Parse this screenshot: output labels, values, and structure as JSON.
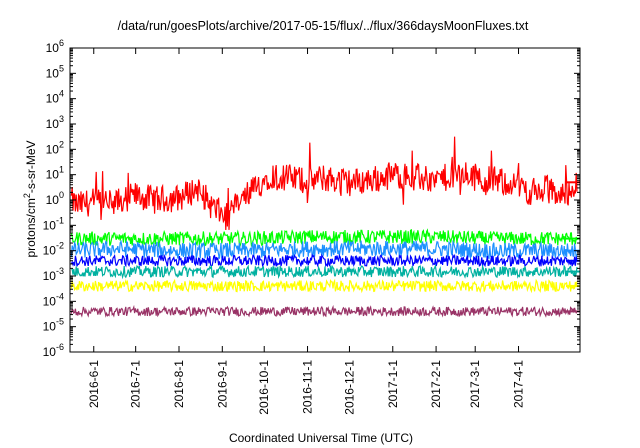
{
  "chart_data": {
    "type": "line",
    "title": "/data/run/goesPlots/archive/2017-05-15/flux/../flux/366daysMoonFluxes.txt",
    "xlabel": "Coordinated Universal Time (UTC)",
    "ylabel_parts": [
      "protons/cm",
      "2",
      "-s-sr-MeV"
    ],
    "y_scale": "log",
    "ylim": [
      1e-06,
      1000000.0
    ],
    "y_ticks": [
      {
        "base": "10",
        "exp": "-6",
        "value": 1e-06
      },
      {
        "base": "10",
        "exp": "-5",
        "value": 1e-05
      },
      {
        "base": "10",
        "exp": "-4",
        "value": 0.0001
      },
      {
        "base": "10",
        "exp": "-3",
        "value": 0.001
      },
      {
        "base": "10",
        "exp": "-2",
        "value": 0.01
      },
      {
        "base": "10",
        "exp": "-1",
        "value": 0.1
      },
      {
        "base": "10",
        "exp": "0",
        "value": 1
      },
      {
        "base": "10",
        "exp": "1",
        "value": 10.0
      },
      {
        "base": "10",
        "exp": "2",
        "value": 100.0
      },
      {
        "base": "10",
        "exp": "3",
        "value": 1000.0
      },
      {
        "base": "10",
        "exp": "4",
        "value": 10000.0
      },
      {
        "base": "10",
        "exp": "5",
        "value": 100000.0
      },
      {
        "base": "10",
        "exp": "6",
        "value": 1000000.0
      }
    ],
    "xlim": [
      "2016-05-15",
      "2017-05-15"
    ],
    "x_ticks": [
      "2016-6-1",
      "2016-7-1",
      "2016-8-1",
      "2016-9-1",
      "2016-10-1",
      "2016-11-1",
      "2016-12-1",
      "2017-1-1",
      "2017-2-1",
      "2017-3-1",
      "2017-4-1"
    ],
    "x_tick_dates": [
      "2016-06-01",
      "2016-07-01",
      "2016-08-01",
      "2016-09-01",
      "2016-10-01",
      "2016-11-01",
      "2016-12-01",
      "2017-01-01",
      "2017-02-01",
      "2017-03-01",
      "2017-04-01"
    ],
    "grid": false,
    "legend": "none",
    "series": [
      {
        "color": "#ff0000",
        "x": [
          "2016-05-16",
          "2016-05-20",
          "2016-06-01",
          "2016-06-15",
          "2016-07-01",
          "2016-07-15",
          "2016-08-01",
          "2016-08-15",
          "2016-08-25",
          "2016-09-05",
          "2016-09-15",
          "2016-09-25",
          "2016-10-05",
          "2016-10-15",
          "2016-11-01",
          "2016-11-15",
          "2016-12-01",
          "2016-12-15",
          "2017-01-01",
          "2017-01-15",
          "2017-02-01",
          "2017-02-15",
          "2017-03-01",
          "2017-03-15",
          "2017-04-01",
          "2017-04-10",
          "2017-04-20",
          "2017-05-01",
          "2017-05-13"
        ],
        "values": [
          1.0,
          0.6,
          0.9,
          0.7,
          1.5,
          1.0,
          1.2,
          3.0,
          0.5,
          0.2,
          1.0,
          3.0,
          10,
          8,
          6,
          7,
          5,
          6,
          10,
          8,
          6,
          10,
          8,
          6,
          4,
          2,
          3,
          1.5,
          5
        ]
      },
      {
        "color": "#00ff00",
        "x": [
          "2016-05-16",
          "2016-06-15",
          "2016-08-01",
          "2016-09-15",
          "2016-11-01",
          "2016-12-15",
          "2017-02-01",
          "2017-03-15",
          "2017-05-13"
        ],
        "values": [
          0.03,
          0.03,
          0.03,
          0.03,
          0.035,
          0.035,
          0.035,
          0.03,
          0.03
        ]
      },
      {
        "color": "#1e90ff",
        "x": [
          "2016-05-16",
          "2016-06-15",
          "2016-08-01",
          "2016-09-15",
          "2016-11-01",
          "2016-12-15",
          "2017-02-01",
          "2017-03-15",
          "2017-05-13"
        ],
        "values": [
          0.01,
          0.012,
          0.01,
          0.01,
          0.012,
          0.012,
          0.012,
          0.01,
          0.01
        ]
      },
      {
        "color": "#0000ff",
        "x": [
          "2016-05-16",
          "2016-06-15",
          "2016-08-01",
          "2016-09-15",
          "2016-11-01",
          "2016-12-15",
          "2017-02-01",
          "2017-03-15",
          "2017-05-13"
        ],
        "values": [
          0.004,
          0.004,
          0.004,
          0.004,
          0.004,
          0.004,
          0.004,
          0.004,
          0.004
        ]
      },
      {
        "color": "#00b0a0",
        "x": [
          "2016-05-16",
          "2016-06-15",
          "2016-08-01",
          "2016-09-15",
          "2016-11-01",
          "2016-12-15",
          "2017-02-01",
          "2017-03-15",
          "2017-05-13"
        ],
        "values": [
          0.0015,
          0.0015,
          0.0015,
          0.0015,
          0.0015,
          0.0015,
          0.0015,
          0.0015,
          0.0015
        ]
      },
      {
        "color": "#ffff00",
        "x": [
          "2016-05-16",
          "2016-06-15",
          "2016-08-01",
          "2016-09-15",
          "2016-11-01",
          "2016-12-15",
          "2017-02-01",
          "2017-03-15",
          "2017-05-13"
        ],
        "values": [
          0.0004,
          0.0004,
          0.0004,
          0.0004,
          0.0004,
          0.0004,
          0.0004,
          0.0004,
          0.0004
        ]
      },
      {
        "color": "#993366",
        "x": [
          "2016-05-16",
          "2016-06-15",
          "2016-08-01",
          "2016-09-15",
          "2016-11-01",
          "2016-12-15",
          "2017-02-01",
          "2017-03-15",
          "2017-04-25",
          "2017-05-13"
        ],
        "values": [
          4e-05,
          4e-05,
          4e-05,
          4e-05,
          4e-05,
          4e-05,
          4e-05,
          4e-05,
          4e-05,
          4e-05
        ]
      }
    ]
  }
}
